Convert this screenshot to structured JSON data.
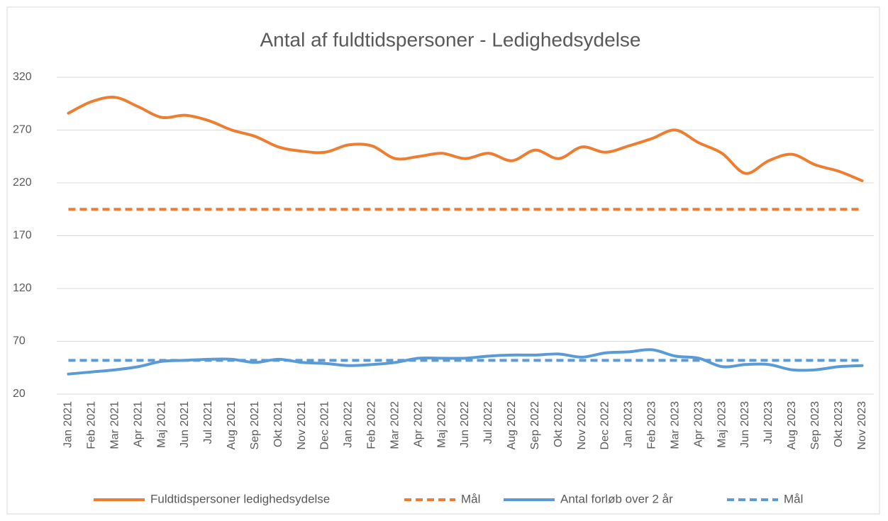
{
  "chart_data": {
    "type": "line",
    "title": "Antal af fuldtidspersoner - Ledighedsydelse",
    "categories": [
      "Jan 2021",
      "Feb 2021",
      "Mar 2021",
      "Apr 2021",
      "Maj 2021",
      "Jun 2021",
      "Jul 2021",
      "Aug 2021",
      "Sep 2021",
      "Okt 2021",
      "Nov 2021",
      "Dec 2021",
      "Jan 2022",
      "Feb 2022",
      "Mar 2022",
      "Apr 2022",
      "Maj 2022",
      "Jun 2022",
      "Jul 2022",
      "Aug 2022",
      "Sep 2022",
      "Okt 2022",
      "Nov 2022",
      "Dec 2022",
      "Jan 2023",
      "Feb 2023",
      "Mar 2023",
      "Apr 2023",
      "Maj 2023",
      "Jun 2023",
      "Jul 2023",
      "Aug 2023",
      "Sep 2023",
      "Okt 2023",
      "Nov 2023"
    ],
    "series": [
      {
        "name": "Fuldtidspersoner ledighedsydelse",
        "color": "#ed7d31",
        "dash": false,
        "values": [
          286,
          297,
          301,
          292,
          282,
          284,
          279,
          270,
          264,
          254,
          250,
          249,
          256,
          255,
          243,
          245,
          248,
          243,
          248,
          241,
          251,
          243,
          254,
          249,
          255,
          262,
          270,
          258,
          248,
          229,
          241,
          247,
          237,
          231,
          222
        ]
      },
      {
        "name": "Mål",
        "color": "#ed7d31",
        "dash": true,
        "values": [
          195,
          195,
          195,
          195,
          195,
          195,
          195,
          195,
          195,
          195,
          195,
          195,
          195,
          195,
          195,
          195,
          195,
          195,
          195,
          195,
          195,
          195,
          195,
          195,
          195,
          195,
          195,
          195,
          195,
          195,
          195,
          195,
          195,
          195,
          195
        ]
      },
      {
        "name": "Antal forløb over 2 år",
        "color": "#5b9bd5",
        "dash": false,
        "values": [
          39,
          41,
          43,
          46,
          51,
          52,
          53,
          53,
          50,
          53,
          50,
          49,
          47,
          48,
          50,
          54,
          54,
          54,
          56,
          57,
          57,
          58,
          55,
          59,
          60,
          62,
          56,
          54,
          46,
          48,
          48,
          43,
          43,
          46,
          47
        ]
      },
      {
        "name": "Mål",
        "color": "#5b9bd5",
        "dash": true,
        "values": [
          52,
          52,
          52,
          52,
          52,
          52,
          52,
          52,
          52,
          52,
          52,
          52,
          52,
          52,
          52,
          52,
          52,
          52,
          52,
          52,
          52,
          52,
          52,
          52,
          52,
          52,
          52,
          52,
          52,
          52,
          52,
          52,
          52,
          52,
          52
        ]
      }
    ],
    "ylim": [
      20,
      320
    ],
    "yticks": [
      20,
      70,
      120,
      170,
      220,
      270,
      320
    ],
    "grid": true
  }
}
